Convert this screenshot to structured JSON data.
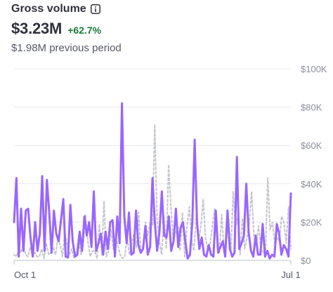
{
  "header": {
    "title": "Gross volume",
    "info_icon": "info-icon",
    "value": "$3.23M",
    "delta": "+62.7%",
    "previous": "$1.98M previous period"
  },
  "colors": {
    "current": "#9966ff",
    "previous": "#c4c6cc",
    "grid": "#e6e7eb",
    "delta": "#1a7a37"
  },
  "chart_data": {
    "type": "line",
    "y_ticks": [
      "$100K",
      "$80K",
      "$60K",
      "$40K",
      "$20K",
      "$0"
    ],
    "x_ticks": [
      "Oct 1",
      "Jul 1"
    ],
    "ylim": [
      0,
      100000
    ],
    "grid": true,
    "series": [
      {
        "name": "",
        "style": "solid",
        "values": [
          20000,
          43000,
          2000,
          27000,
          5000,
          26000,
          27000,
          12000,
          2000,
          20000,
          5000,
          14000,
          44000,
          5000,
          42000,
          25000,
          4000,
          26000,
          14000,
          10000,
          21000,
          32000,
          2000,
          1500,
          29000,
          10000,
          2000,
          3000,
          15000,
          5000,
          23000,
          13000,
          20000,
          7000,
          36000,
          5000,
          9000,
          14000,
          3000,
          15000,
          6000,
          20000,
          21000,
          2000,
          23000,
          9000,
          82000,
          23000,
          9000,
          25000,
          3000,
          4000,
          26000,
          8000,
          4000,
          6000,
          18000,
          3000,
          7000,
          43000,
          20000,
          5000,
          15000,
          36000,
          13000,
          12000,
          23000,
          5000,
          10000,
          27000,
          7000,
          17000,
          20000,
          10000,
          1000,
          3000,
          20000,
          63000,
          20000,
          6000,
          12000,
          3000,
          2000,
          8000,
          3000,
          2000,
          26000,
          4000,
          7000,
          10000,
          2000,
          26000,
          6000,
          2000,
          4000,
          54000,
          6000,
          9000,
          13000,
          40000,
          15000,
          5000,
          2000,
          13000,
          3000,
          3000,
          19000,
          2000,
          5000,
          1000,
          3000,
          2000,
          19000,
          14000,
          3000,
          8000,
          6000,
          2000,
          35000
        ]
      },
      {
        "name": "",
        "style": "dashed",
        "values": [
          3000,
          2000,
          6000,
          4000,
          9000,
          3000,
          2000,
          7000,
          2000,
          4000,
          2000,
          2000,
          6000,
          1000,
          9000,
          3000,
          4000,
          7000,
          3000,
          12000,
          8000,
          2000,
          15000,
          8000,
          3000,
          6000,
          1000,
          4000,
          13000,
          3000,
          8000,
          24000,
          10000,
          2000,
          5000,
          5000,
          1000,
          19000,
          3000,
          31000,
          2000,
          5000,
          16000,
          6000,
          12000,
          8000,
          3000,
          1000,
          2000,
          12000,
          3000,
          9000,
          14000,
          7000,
          25000,
          4000,
          8000,
          20000,
          13000,
          20000,
          18000,
          71000,
          21000,
          10000,
          3000,
          23000,
          6000,
          50000,
          28000,
          10000,
          14000,
          18000,
          5000,
          25000,
          2000,
          18000,
          28000,
          11000,
          5000,
          24000,
          10000,
          18000,
          32000,
          12000,
          6000,
          9000,
          18000,
          27000,
          12000,
          4000,
          24000,
          6000,
          9000,
          22000,
          4000,
          36000,
          17000,
          23000,
          3000,
          22000,
          6000,
          12000,
          20000,
          36000,
          12000,
          8000,
          18000,
          6000,
          4000,
          4000,
          43000,
          16000,
          20000,
          9000,
          12000,
          10000,
          23000,
          20000,
          9000,
          28000,
          6000
        ]
      }
    ]
  }
}
